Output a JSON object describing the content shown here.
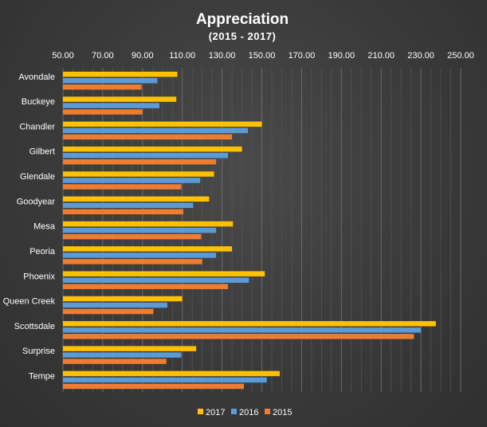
{
  "chart_data": {
    "type": "bar",
    "orientation": "horizontal",
    "title": "Appreciation",
    "subtitle": "(2015 - 2017)",
    "xlim": [
      50,
      250
    ],
    "x_ticks": [
      "50.00",
      "70.00",
      "90.00",
      "110.00",
      "130.00",
      "150.00",
      "170.00",
      "190.00",
      "210.00",
      "230.00",
      "250.00"
    ],
    "grid": true,
    "legend_position": "bottom",
    "categories": [
      "Avondale",
      "Buckeye",
      "Chandler",
      "Gilbert",
      "Glendale",
      "Goodyear",
      "Mesa",
      "Peoria",
      "Phoenix",
      "Queen Creek",
      "Scottsdale",
      "Surprise",
      "Tempe"
    ],
    "series": [
      {
        "name": "2017",
        "color": "#ffc000",
        "values": [
          107.5,
          107,
          150,
          140,
          126,
          123.5,
          135.5,
          135,
          151.5,
          110,
          237.5,
          117,
          159
        ]
      },
      {
        "name": "2016",
        "color": "#5b9bd5",
        "values": [
          97.5,
          98.5,
          143,
          133,
          119,
          115.5,
          127,
          127,
          143.5,
          102.5,
          230,
          109.5,
          152.5
        ]
      },
      {
        "name": "2015",
        "color": "#ed7d31",
        "values": [
          89.5,
          90,
          135,
          127,
          109.5,
          110.5,
          119.5,
          120,
          133,
          95.5,
          226.5,
          102,
          141
        ]
      }
    ]
  }
}
